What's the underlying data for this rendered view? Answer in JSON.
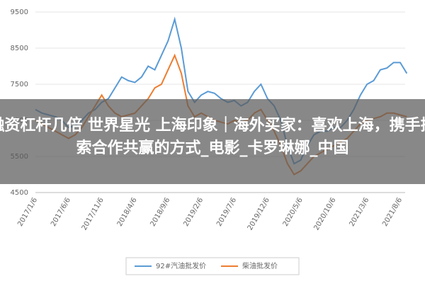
{
  "chart_data": {
    "type": "line",
    "categories": [
      "2017/1/6",
      null,
      null,
      null,
      null,
      "2017/6/6",
      null,
      null,
      null,
      null,
      "2017/11/6",
      null,
      null,
      null,
      null,
      "2018/4/6",
      null,
      null,
      null,
      null,
      "2018/9/6",
      null,
      null,
      null,
      null,
      "2019/2/6",
      null,
      null,
      null,
      null,
      "2019/7/6",
      null,
      null,
      null,
      null,
      "2019/12/6",
      null,
      null,
      null,
      null,
      "2020/5/6",
      null,
      null,
      null,
      null,
      "2020/10/6",
      null,
      null,
      null,
      null,
      "2021/3/6",
      null,
      null,
      null,
      null,
      "2021/8/6",
      null
    ],
    "series": [
      {
        "name": "92#汽油批发价",
        "color": "#5b9bd5",
        "values": [
          6800,
          6700,
          6650,
          6600,
          6500,
          6300,
          6350,
          6500,
          6700,
          6800,
          7000,
          7100,
          7400,
          7700,
          7600,
          7550,
          7700,
          8000,
          7900,
          8300,
          8700,
          9300,
          8500,
          7300,
          7000,
          7200,
          7300,
          7250,
          7100,
          7000,
          7050,
          6900,
          7000,
          7300,
          7500,
          7100,
          6900,
          6500,
          5800,
          5300,
          5400,
          5800,
          6100,
          6200,
          6200,
          6300,
          6300,
          6500,
          6800,
          7200,
          7500,
          7600,
          7900,
          7950,
          8100,
          8100,
          7800
        ]
      },
      {
        "name": "柴油批发价",
        "color": "#ed7d31",
        "values": [
          6500,
          6400,
          6300,
          6200,
          6100,
          6000,
          6100,
          6300,
          6600,
          6900,
          7200,
          6900,
          6700,
          6600,
          6650,
          6700,
          6900,
          7100,
          7400,
          7500,
          7900,
          8300,
          7800,
          6900,
          6600,
          6700,
          6600,
          6500,
          6450,
          6400,
          6500,
          6450,
          6500,
          6700,
          6800,
          6500,
          6200,
          5800,
          5300,
          5000,
          5100,
          5300,
          5500,
          5600,
          5700,
          5800,
          5900,
          6000,
          6200,
          6400,
          6500,
          6550,
          6600,
          6700,
          6700,
          6650,
          6600
        ]
      }
    ],
    "ylim": [
      4500,
      9500
    ],
    "yticks": [
      4500,
      5500,
      6500,
      7500,
      8500,
      9500
    ],
    "grid": true,
    "overlay_text": "融资杠杆几倍 世界星光 上海印象｜海外买家：喜欢上海，携手探索合作共赢的方式_电影_卡罗琳娜_中国"
  }
}
